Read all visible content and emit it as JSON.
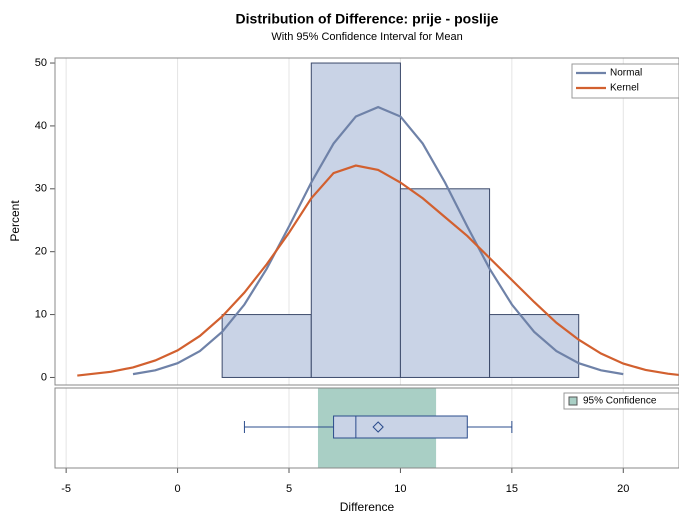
{
  "chart_data": {
    "type": "histogram",
    "title": "Distribution of Difference: prije - poslije",
    "subtitle": "With 95% Confidence Interval for Mean",
    "x_label": "Difference",
    "y_label": "Percent",
    "bins": [
      2,
      6,
      10,
      14,
      18
    ],
    "values": [
      10,
      50,
      30,
      10
    ],
    "color": "#c9d3e6",
    "xlim": [
      -5.5,
      22.5
    ],
    "xticks": [
      -5,
      0,
      5,
      10,
      15,
      20
    ],
    "ylim": [
      -1.2,
      50.8
    ],
    "yticks": [
      0,
      10,
      20,
      30,
      40,
      50
    ],
    "grid": true,
    "legend": "top-right",
    "series": [
      {
        "name": "Normal",
        "color": "#6f82a8",
        "x": [
          -2,
          -1,
          0,
          1,
          2,
          3,
          4,
          5,
          6,
          7,
          8,
          9,
          10,
          11,
          12,
          13,
          14,
          15,
          16,
          17,
          18,
          19,
          20
        ],
        "values": [
          0.53,
          1.14,
          2.27,
          4.2,
          7.25,
          11.6,
          17.3,
          24.0,
          31.0,
          37.2,
          41.5,
          43,
          41.5,
          37.2,
          31.0,
          24.0,
          17.3,
          11.6,
          7.25,
          4.2,
          2.27,
          1.14,
          0.53
        ]
      },
      {
        "name": "Kernel",
        "color": "#d2602f",
        "x": [
          -4.5,
          -4,
          -3,
          -2,
          -1,
          0,
          1,
          2,
          3,
          4,
          5,
          6,
          7,
          8,
          9,
          10,
          11,
          12,
          13,
          14,
          15,
          16,
          17,
          18,
          19,
          20,
          21,
          22,
          22.5
        ],
        "values": [
          0.3,
          0.5,
          0.9,
          1.6,
          2.7,
          4.3,
          6.6,
          9.7,
          13.5,
          18,
          23,
          28.5,
          32.5,
          33.7,
          33,
          31,
          28.5,
          25.5,
          22.5,
          19,
          15.5,
          12,
          8.7,
          6,
          3.8,
          2.2,
          1.2,
          0.6,
          0.4
        ]
      }
    ],
    "boxplot": {
      "min": 3,
      "q1": 7,
      "median": 8,
      "q3": 13,
      "max": 15,
      "mean": 9,
      "color": "#c9d3e6"
    },
    "confidence_interval": {
      "label": "95% Confidence",
      "lower": 6.3,
      "upper": 11.6,
      "color": "#a9cfc5"
    }
  }
}
